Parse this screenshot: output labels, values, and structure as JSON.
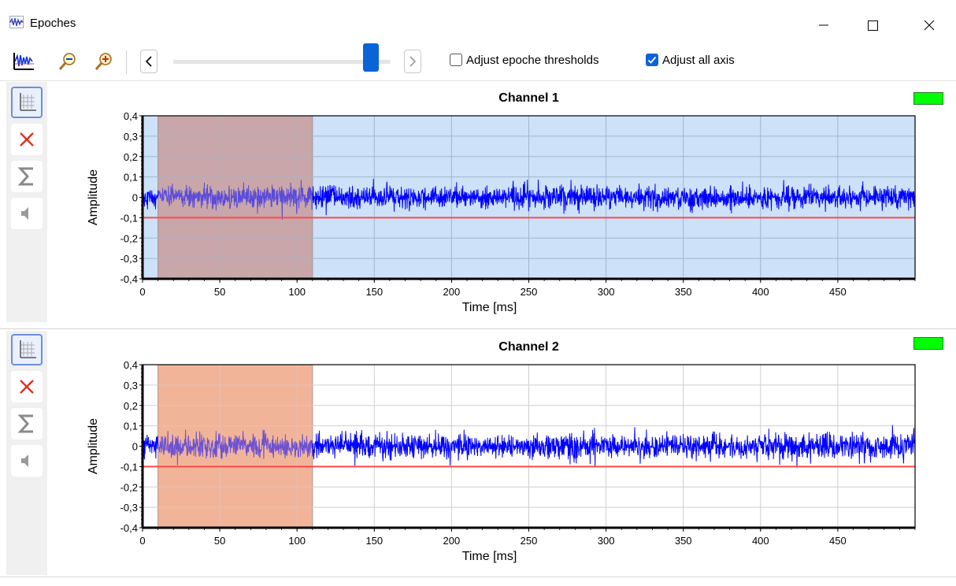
{
  "window": {
    "title": "Epoches",
    "controls": [
      "minimize",
      "maximize",
      "close"
    ]
  },
  "toolbar": {
    "icons": [
      "waveform-view-icon",
      "zoom-out-icon",
      "zoom-in-icon"
    ],
    "slider_value": 0.94,
    "adjust_thresholds": {
      "label": "Adjust epoche thresholds",
      "checked": false
    },
    "adjust_axis": {
      "label": "Adjust all axis",
      "checked": true
    },
    "accent": "#0a64d8"
  },
  "colors": {
    "signal": "#0000ff",
    "threshold": "#ff4a4a",
    "selection": "#f2b49a",
    "channel1_background": "#cde2f9",
    "lamp": "#00ff00"
  },
  "chart_data": [
    {
      "type": "line",
      "title": "Channel 1",
      "xlabel": "Time [ms]",
      "ylabel": "Amplitude",
      "xlim": [
        0,
        500
      ],
      "ylim": [
        -0.4,
        0.4
      ],
      "xticks": [
        "0",
        "50",
        "100",
        "150",
        "200",
        "250",
        "300",
        "350",
        "400",
        "450"
      ],
      "yticks": [
        "0,4",
        "0,3",
        "0,2",
        "0,1",
        "0",
        "-0,1",
        "-0,2",
        "-0,3",
        "-0,4"
      ],
      "grid": true,
      "background": "#cde2f9",
      "threshold": -0.1,
      "selection_window": [
        10,
        110
      ],
      "series": [
        {
          "noise_amplitude": 0.05,
          "peak_min": -0.17,
          "peak_max": 0.16,
          "points": 2500
        }
      ]
    },
    {
      "type": "line",
      "title": "Channel 2",
      "xlabel": "Time [ms]",
      "ylabel": "Amplitude",
      "xlim": [
        0,
        500
      ],
      "ylim": [
        -0.4,
        0.4
      ],
      "xticks": [
        "0",
        "50",
        "100",
        "150",
        "200",
        "250",
        "300",
        "350",
        "400",
        "450"
      ],
      "yticks": [
        "0,4",
        "0,3",
        "0,2",
        "0,1",
        "0",
        "-0,1",
        "-0,2",
        "-0,3",
        "-0,4"
      ],
      "grid": true,
      "background": "#ffffff",
      "threshold": -0.1,
      "selection_window": [
        10,
        110
      ],
      "series": [
        {
          "noise_amplitude": 0.055,
          "peak_min": -0.16,
          "peak_max": 0.2,
          "points": 2500
        }
      ]
    }
  ]
}
